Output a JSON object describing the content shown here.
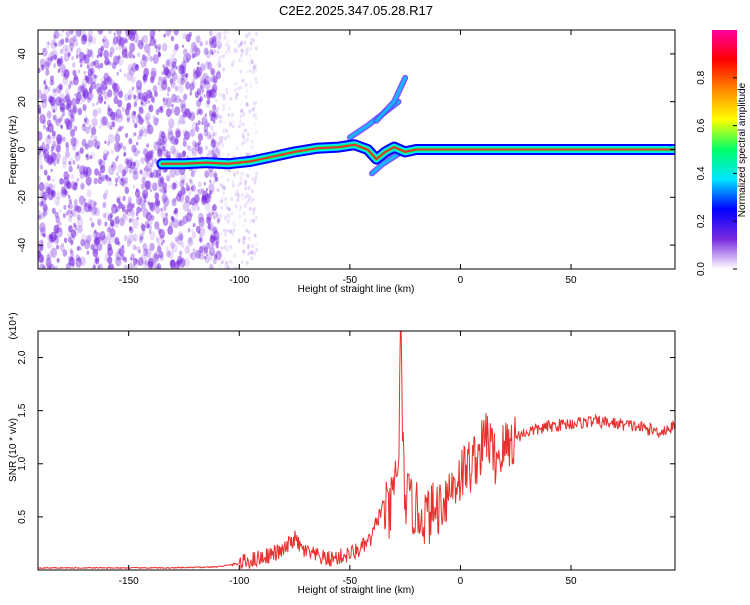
{
  "figure_title": "C2E2.2025.347.05.28.R17",
  "colors": {
    "frame": "#000000",
    "snr_line": "#e8302f",
    "ridge_core": "#e8302f",
    "noise": "#7a2be0"
  },
  "colorbar": {
    "label": "Normalized spectral amplitude",
    "range": [
      0,
      1
    ],
    "ticks": [
      0.0,
      0.2,
      0.4,
      0.6,
      0.8
    ],
    "tick_labels": [
      "0.0",
      "0.2",
      "0.4",
      "0.6",
      "0.8"
    ],
    "stops": [
      "#ffffff",
      "#7a2be0",
      "#0000ff",
      "#00e5ff",
      "#00ff66",
      "#ffff00",
      "#ff8800",
      "#ff0000",
      "#ff00a0"
    ]
  },
  "chart_data": [
    {
      "type": "heatmap",
      "title": "",
      "xlabel": "Height of straight line (km)",
      "ylabel": "Frequency (Hz)",
      "xlim": [
        -191,
        97
      ],
      "ylim": [
        -50,
        50
      ],
      "xticks": [
        -150,
        -100,
        -50,
        0,
        50
      ],
      "xtick_labels": [
        "-150",
        "-100",
        "-50",
        "0",
        "50"
      ],
      "yticks": [
        -40,
        -20,
        0,
        20,
        40
      ],
      "ytick_labels": [
        "-40",
        "-20",
        "0",
        "20",
        "40"
      ],
      "ridge": {
        "x": [
          -135,
          -125,
          -115,
          -105,
          -95,
          -85,
          -75,
          -65,
          -55,
          -48,
          -42,
          -38,
          -34,
          -30,
          -25,
          -20,
          -10,
          0,
          10,
          30,
          60,
          97
        ],
        "y": [
          -6,
          -6,
          -5.5,
          -6,
          -5,
          -3,
          -1,
          0.5,
          1,
          2,
          0,
          -4,
          -1,
          1,
          -1,
          0,
          0,
          0,
          0,
          0,
          0,
          0
        ]
      },
      "branches": [
        {
          "x": [
            -50,
            -42,
            -35,
            -28
          ],
          "y": [
            5,
            10,
            15,
            20
          ]
        },
        {
          "x": [
            -38,
            -30,
            -25
          ],
          "y": [
            12,
            20,
            30
          ]
        },
        {
          "x": [
            -40,
            -35,
            -30,
            -25
          ],
          "y": [
            -10,
            -6,
            -3,
            0
          ]
        }
      ]
    },
    {
      "type": "line",
      "title": "",
      "xlabel": "Height of straight line (km)",
      "ylabel": "SNR (10 * v/v)",
      "multiplier_label": "(x10⁴)",
      "xlim": [
        -191,
        97
      ],
      "ylim": [
        0,
        2.25
      ],
      "xticks": [
        -150,
        -100,
        -50,
        0,
        50
      ],
      "xtick_labels": [
        "-150",
        "-100",
        "-50",
        "0",
        "50"
      ],
      "yticks": [
        0.5,
        1.0,
        1.5,
        2.0
      ],
      "ytick_labels": [
        "0.5",
        "1.0",
        "1.5",
        "2.0"
      ],
      "series": [
        {
          "x": [
            -191,
            -170,
            -150,
            -130,
            -110,
            -100,
            -90,
            -80,
            -75,
            -72,
            -68,
            -60,
            -55,
            -50,
            -45,
            -40,
            -38,
            -35,
            -32,
            -30,
            -28,
            -27,
            -26,
            -25,
            -22,
            -20,
            -15,
            -10,
            -5,
            0,
            5,
            10,
            12,
            15,
            18,
            20,
            25,
            30,
            40,
            50,
            60,
            70,
            80,
            90,
            97
          ],
          "y": [
            0.02,
            0.02,
            0.02,
            0.02,
            0.03,
            0.06,
            0.12,
            0.18,
            0.3,
            0.2,
            0.15,
            0.1,
            0.12,
            0.15,
            0.2,
            0.3,
            0.45,
            0.6,
            0.5,
            0.8,
            1.0,
            2.3,
            1.1,
            0.7,
            0.6,
            0.55,
            0.5,
            0.6,
            0.75,
            0.9,
            1.0,
            1.15,
            1.3,
            1.05,
            1.1,
            1.15,
            1.25,
            1.3,
            1.35,
            1.38,
            1.4,
            1.38,
            1.35,
            1.3,
            1.35
          ]
        }
      ]
    }
  ]
}
